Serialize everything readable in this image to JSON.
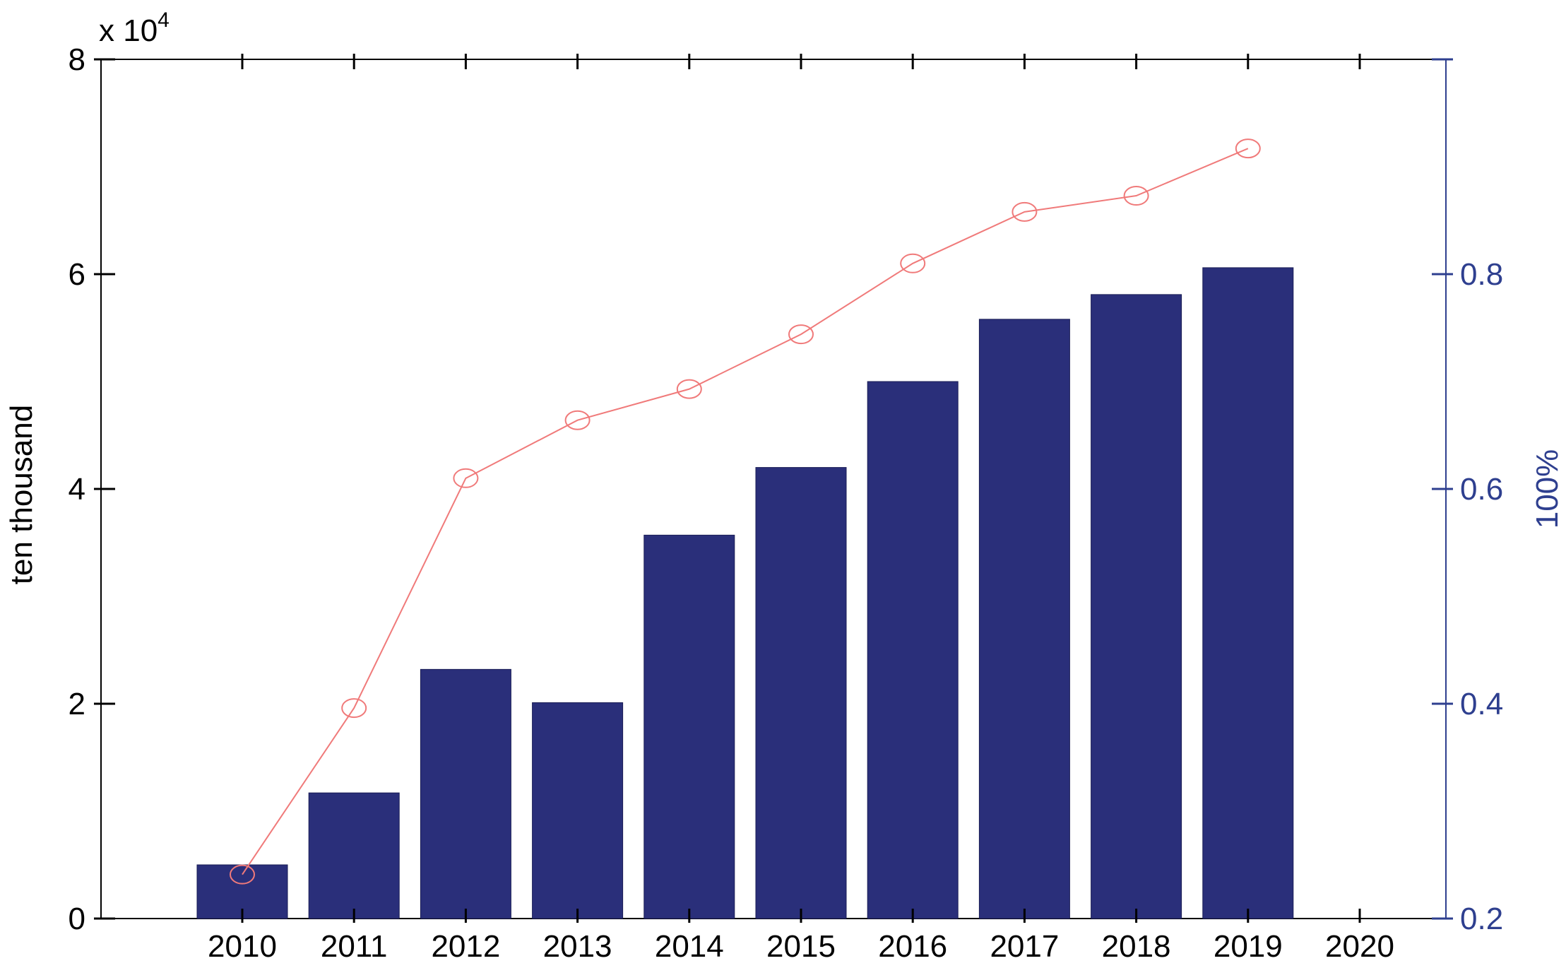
{
  "chart_data": {
    "type": "bar",
    "categories": [
      "2010",
      "2011",
      "2012",
      "2013",
      "2014",
      "2015",
      "2016",
      "2017",
      "2018",
      "2019",
      "2020"
    ],
    "series": [
      {
        "type": "bar",
        "axis": "left",
        "values": [
          5000,
          11700,
          23200,
          20100,
          35700,
          42000,
          50000,
          55800,
          58100,
          60600,
          null
        ]
      },
      {
        "type": "line",
        "axis": "right",
        "values": [
          0.241,
          0.396,
          0.61,
          0.664,
          0.693,
          0.744,
          0.81,
          0.858,
          0.873,
          0.917,
          null
        ]
      }
    ],
    "ylabel": "ten thousand",
    "ylabel_right": "100%",
    "y_exponent_label": "x 10",
    "y_exponent_power": "4",
    "ylim": [
      0,
      80000
    ],
    "ylim_right": [
      0.2,
      1.0
    ],
    "yticks": [
      0,
      20000,
      40000,
      60000,
      80000
    ],
    "ytick_labels": [
      "0",
      "2",
      "4",
      "6",
      "8"
    ],
    "yticks_right": [
      0.2,
      0.4,
      0.6,
      0.8
    ],
    "ytick_labels_right": [
      "0.2",
      "0.4",
      "0.6",
      "0.8"
    ],
    "grid": false,
    "colors": {
      "bar": "#2a2f7a",
      "line": "#f07a7a",
      "right_axis": "#2e3f8f",
      "left_axis": "#000000"
    }
  }
}
